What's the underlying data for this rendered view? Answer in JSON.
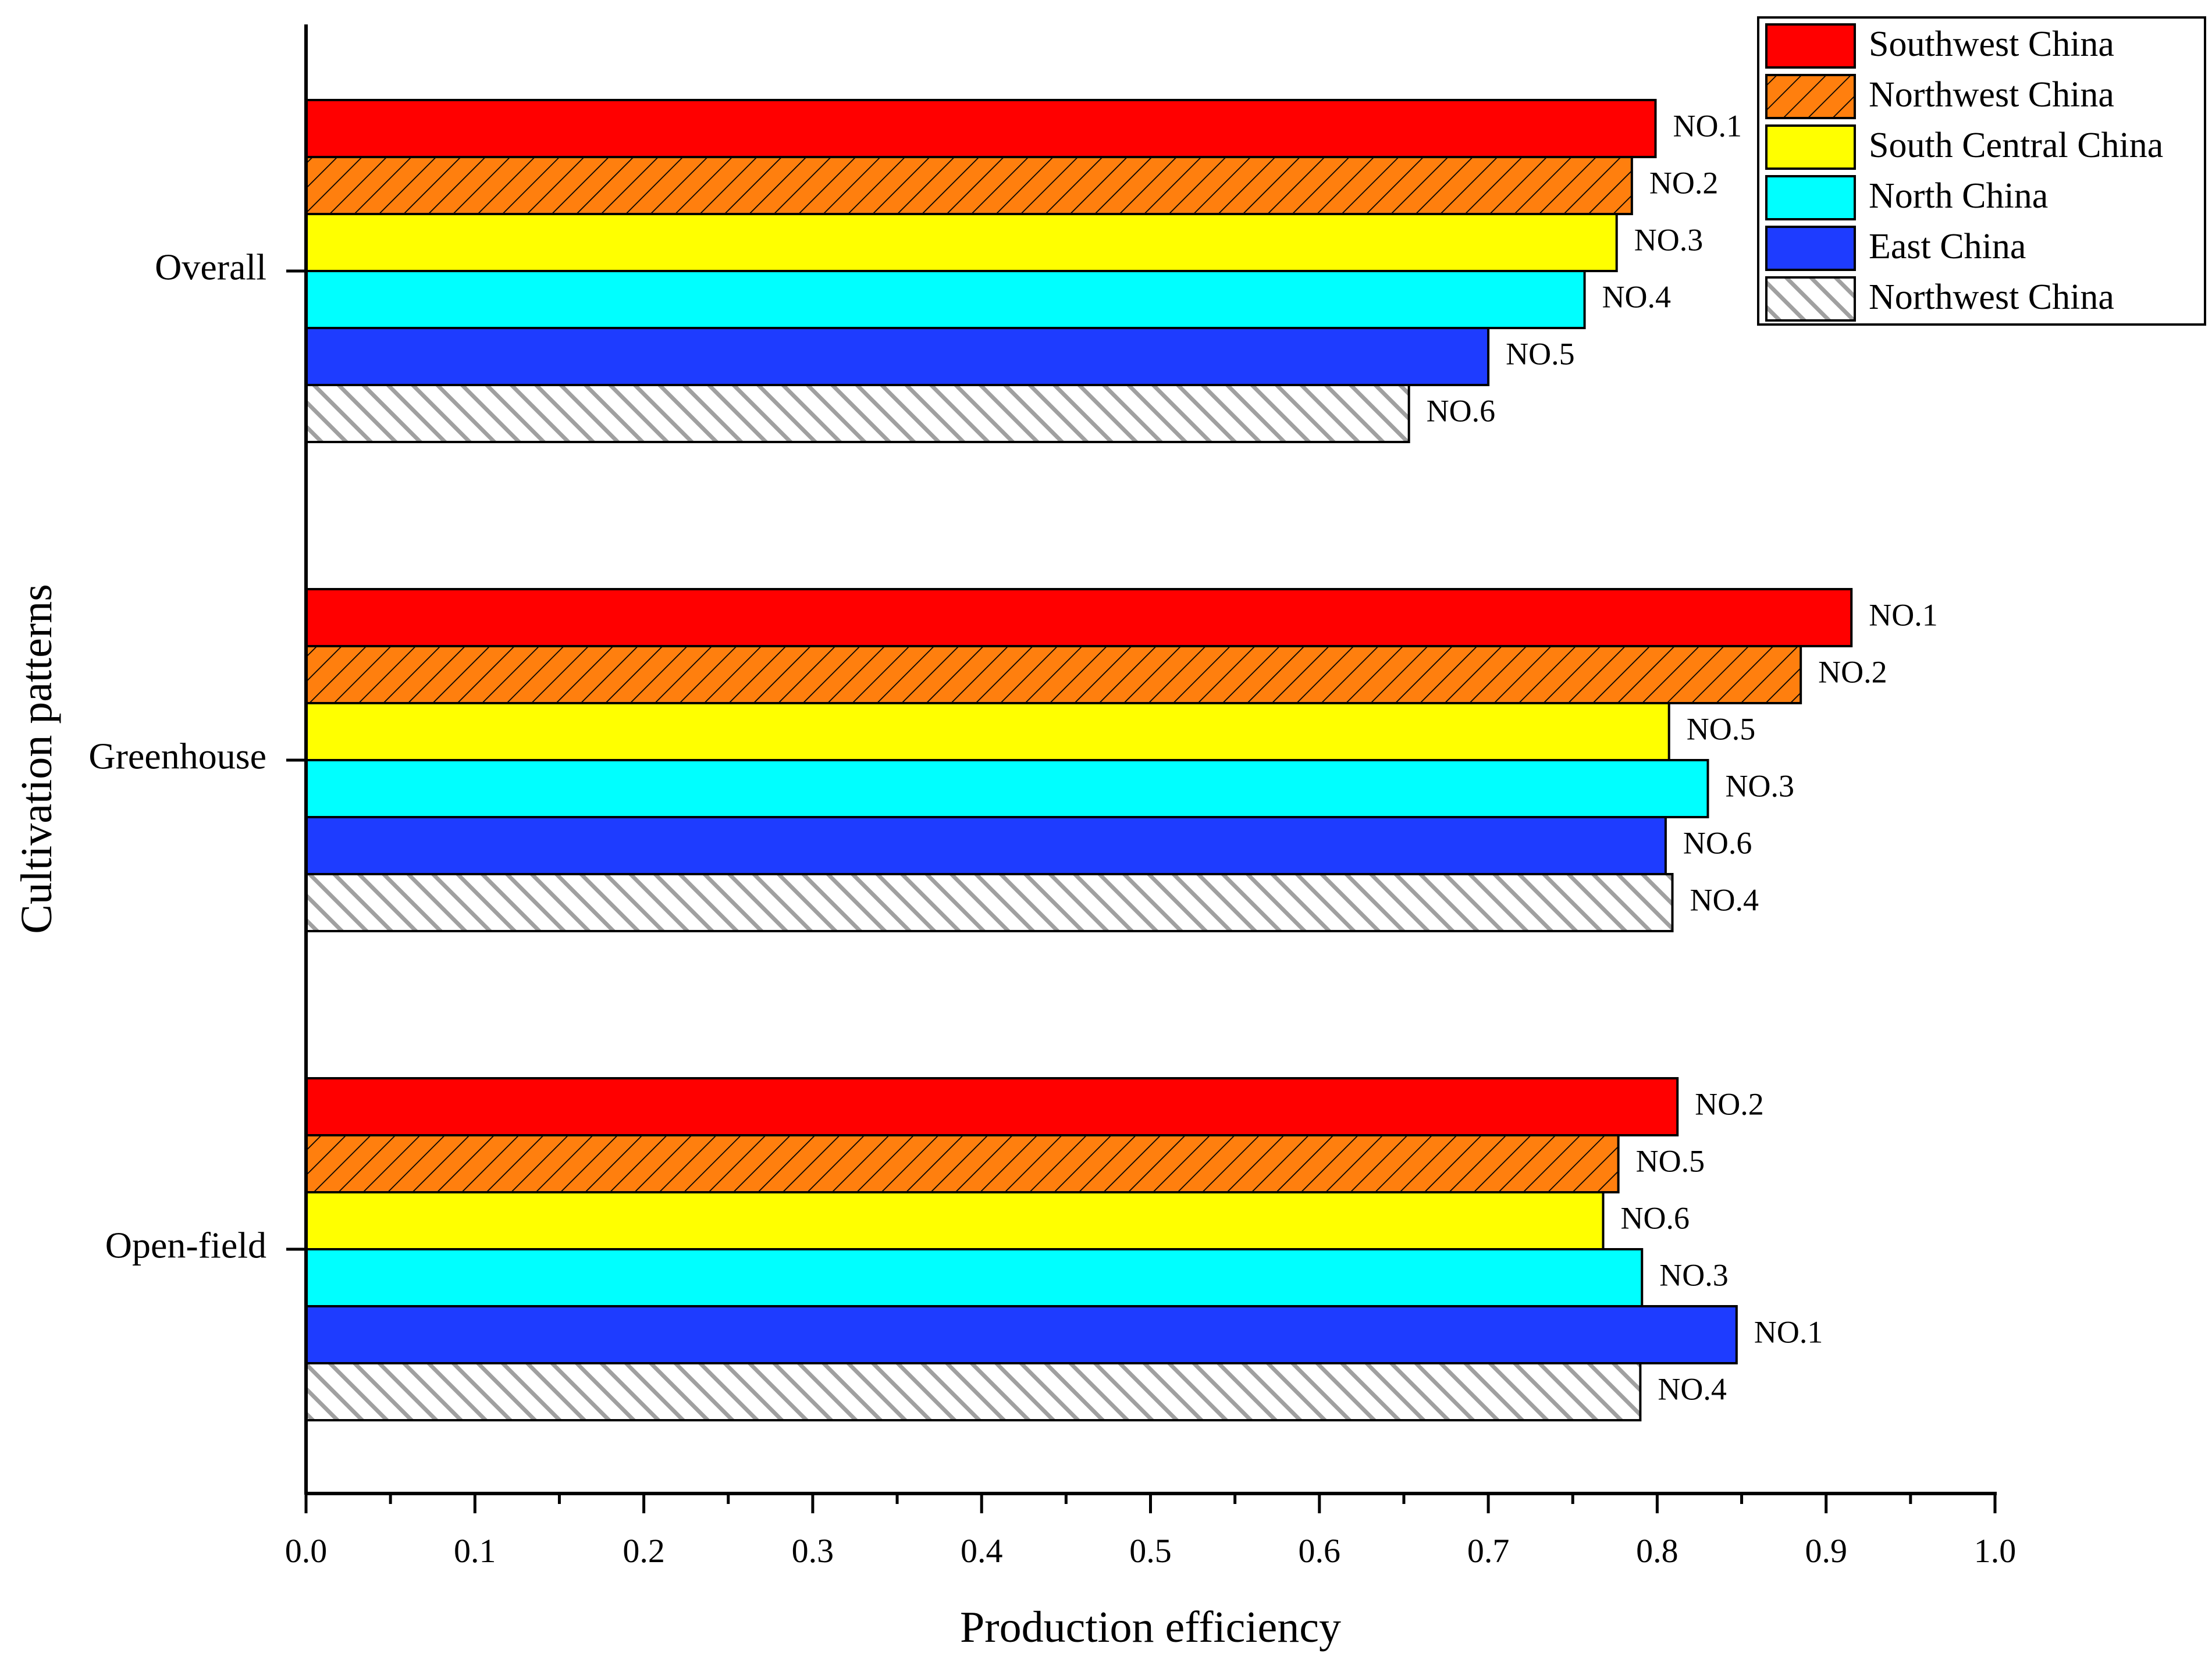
{
  "chart_data": {
    "type": "bar",
    "orientation": "horizontal",
    "title": "",
    "xlabel": "Production efficiency",
    "ylabel": "Cultivation patterns",
    "xlim": [
      0.0,
      1.0
    ],
    "xticks": [
      "0.0",
      "0.1",
      "0.2",
      "0.3",
      "0.4",
      "0.5",
      "0.6",
      "0.7",
      "0.8",
      "0.9",
      "1.0"
    ],
    "grid": false,
    "legend_position": "top-right",
    "categories": [
      "Overall",
      "Greenhouse",
      "Open-field"
    ],
    "series": [
      {
        "name": "Southwest China",
        "color": "#ff0000",
        "pattern": "solid",
        "values": [
          0.799,
          0.915,
          0.812
        ],
        "labels": [
          "NO.1",
          "NO.1",
          "NO.2"
        ]
      },
      {
        "name": "Northwest China",
        "color": "#ff7f0e",
        "pattern": "hatch-right",
        "values": [
          0.785,
          0.885,
          0.777
        ],
        "labels": [
          "NO.2",
          "NO.2",
          "NO.5"
        ]
      },
      {
        "name": "South Central China",
        "color": "#ffff00",
        "pattern": "solid",
        "values": [
          0.776,
          0.807,
          0.768
        ],
        "labels": [
          "NO.3",
          "NO.5",
          "NO.6"
        ]
      },
      {
        "name": "North China",
        "color": "#00ffff",
        "pattern": "solid",
        "values": [
          0.757,
          0.83,
          0.791
        ],
        "labels": [
          "NO.4",
          "NO.3",
          "NO.3"
        ]
      },
      {
        "name": "East China",
        "color": "#1e3cff",
        "pattern": "solid",
        "values": [
          0.7,
          0.805,
          0.847
        ],
        "labels": [
          "NO.5",
          "NO.6",
          "NO.1"
        ]
      },
      {
        "name": "Northwest China",
        "color": "#c0c0c0",
        "pattern": "hatch-left",
        "values": [
          0.653,
          0.809,
          0.79
        ],
        "labels": [
          "NO.6",
          "NO.4",
          "NO.4"
        ]
      }
    ]
  }
}
